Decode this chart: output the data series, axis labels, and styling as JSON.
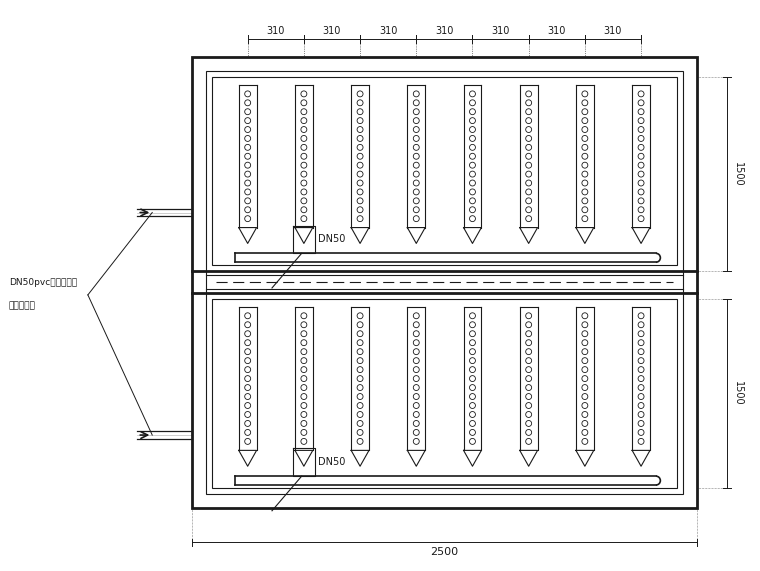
{
  "bg_color": "#ffffff",
  "line_color": "#1a1a1a",
  "figsize": [
    7.6,
    5.71
  ],
  "dpi": 100,
  "dim_310_labels": [
    "310",
    "310",
    "310",
    "310",
    "310",
    "310",
    "310"
  ],
  "dim_1500_top": "1500",
  "dim_1500_bot": "1500",
  "dim_2500": "2500",
  "dn50_label": "DN50",
  "label_left_1": "DN50pvc污泥回流管",
  "label_left_2": "接至调节池",
  "n_columns": 8,
  "n_dots_per_col": 15,
  "font_size_dim": 7,
  "font_size_label": 6.5
}
